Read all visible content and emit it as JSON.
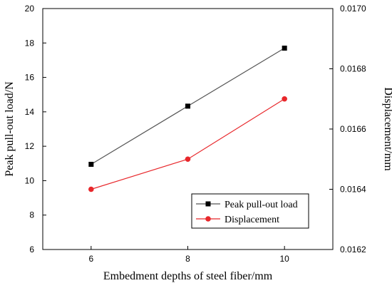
{
  "chart_data": {
    "type": "line",
    "x": [
      6,
      8,
      10
    ],
    "xlabel": "Embedment depths of steel fiber/mm",
    "ylabel": "Peak pull-out load/N",
    "y2label": "Displacement/mm",
    "xlim": [
      5,
      11
    ],
    "ylim": [
      6,
      20
    ],
    "y2lim": [
      0.0162,
      0.017
    ],
    "xticks": [
      6,
      8,
      10
    ],
    "yticks": [
      6,
      8,
      10,
      12,
      14,
      16,
      18,
      20
    ],
    "y2ticks": [
      "0.0162",
      "0.0164",
      "0.0166",
      "0.0168",
      "0.0170"
    ],
    "grid": false,
    "legend_position": "bottom-right",
    "series": [
      {
        "name": "Peak pull-out load",
        "axis": "left",
        "values": [
          10.95,
          14.33,
          17.7
        ],
        "color": "#000000",
        "line_color": "#555555",
        "marker": "square"
      },
      {
        "name": "Displacement",
        "axis": "right",
        "values": [
          0.0164,
          0.0165,
          0.0167
        ],
        "color": "#e8272b",
        "line_color": "#e8272b",
        "marker": "circle"
      }
    ]
  }
}
